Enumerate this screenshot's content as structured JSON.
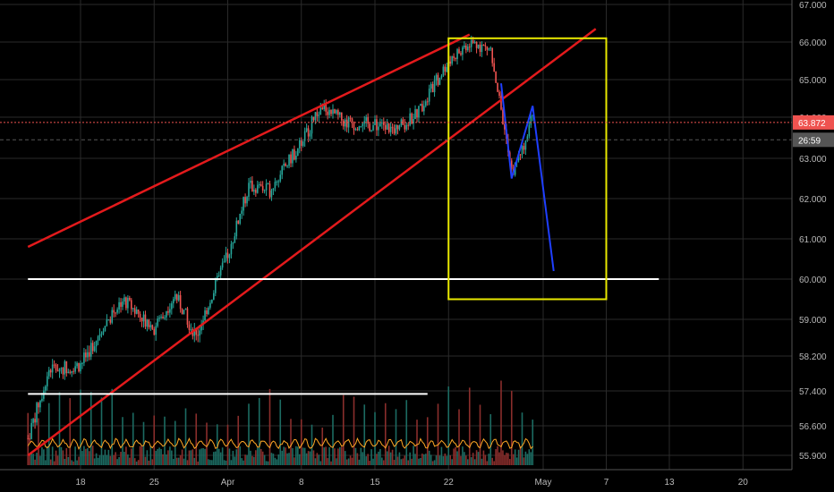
{
  "chart_data": {
    "type": "candlestick",
    "title": "",
    "background": "#000000",
    "colors": {
      "up": "#26a69a",
      "down": "#ef5350",
      "trendline": "#e31a1c",
      "support": "#ffffff",
      "box": "#e8e800",
      "projection": "#1f3fff",
      "oscillator": "#ffa726",
      "grid": "#2a2a2a"
    },
    "y_axis": {
      "labels": [
        "67.000",
        "66.000",
        "65.000",
        "64.000",
        "63.000",
        "62.000",
        "61.000",
        "60.000",
        "59.000",
        "58.200",
        "57.400",
        "56.600",
        "55.900"
      ],
      "ylim": [
        55.7,
        67.0
      ]
    },
    "x_axis": {
      "labels": [
        "18",
        "25",
        "Apr",
        "8",
        "15",
        "22",
        "May",
        "7",
        "13",
        "20"
      ],
      "x": [
        "Mar 18",
        "Mar 25",
        "Apr 1",
        "Apr 8",
        "Apr 15",
        "Apr 22",
        "May 1",
        "May 7",
        "May 13",
        "May 20"
      ]
    },
    "price_badges": [
      {
        "label": "63.872",
        "value": 63.872,
        "color": "#ef5350",
        "line": "dotted"
      },
      {
        "label": "26:59",
        "value": 63.45,
        "color": "#555555",
        "line": "dashed"
      }
    ],
    "series": [
      {
        "name": "",
        "style": "price",
        "x": [
          "Mar 13",
          "Mar 15",
          "Mar 18",
          "Mar 20",
          "Mar 22",
          "Mar 25",
          "Mar 27",
          "Mar 29",
          "Apr 1",
          "Apr 3",
          "Apr 5",
          "Apr 8",
          "Apr 10",
          "Apr 12",
          "Apr 15",
          "Apr 17",
          "Apr 19",
          "Apr 22",
          "Apr 24",
          "Apr 26",
          "Apr 28",
          "Apr 29",
          "Apr 30"
        ],
        "values": [
          56.3,
          57.9,
          58.0,
          58.8,
          59.5,
          58.8,
          59.6,
          58.6,
          60.6,
          62.3,
          62.2,
          63.4,
          64.3,
          63.9,
          63.8,
          63.7,
          64.1,
          65.5,
          66.0,
          65.8,
          62.6,
          63.2,
          64.2
        ]
      },
      {
        "name": "",
        "style": "projection",
        "x": [
          "Apr 27",
          "Apr 28",
          "Apr 29",
          "Apr 30",
          "May 2"
        ],
        "values": [
          64.9,
          62.5,
          63.4,
          64.3,
          60.2
        ]
      }
    ],
    "trendlines": [
      {
        "name": "",
        "x": [
          "Mar 13",
          "Apr 24"
        ],
        "values": [
          60.8,
          66.2
        ]
      },
      {
        "name": "",
        "x": [
          "Mar 13",
          "May 6"
        ],
        "values": [
          55.9,
          66.35
        ]
      }
    ],
    "horizontal_lines": [
      {
        "value": 60.0,
        "x": [
          "Mar 13",
          "May 12"
        ]
      },
      {
        "value": 57.33,
        "x": [
          "Mar 13",
          "Apr 20"
        ]
      }
    ],
    "zones": [
      {
        "x": [
          "Apr 22",
          "May 7"
        ],
        "values": [
          59.5,
          66.1
        ]
      }
    ],
    "volume_panel": {
      "has_oscillator": true
    }
  }
}
